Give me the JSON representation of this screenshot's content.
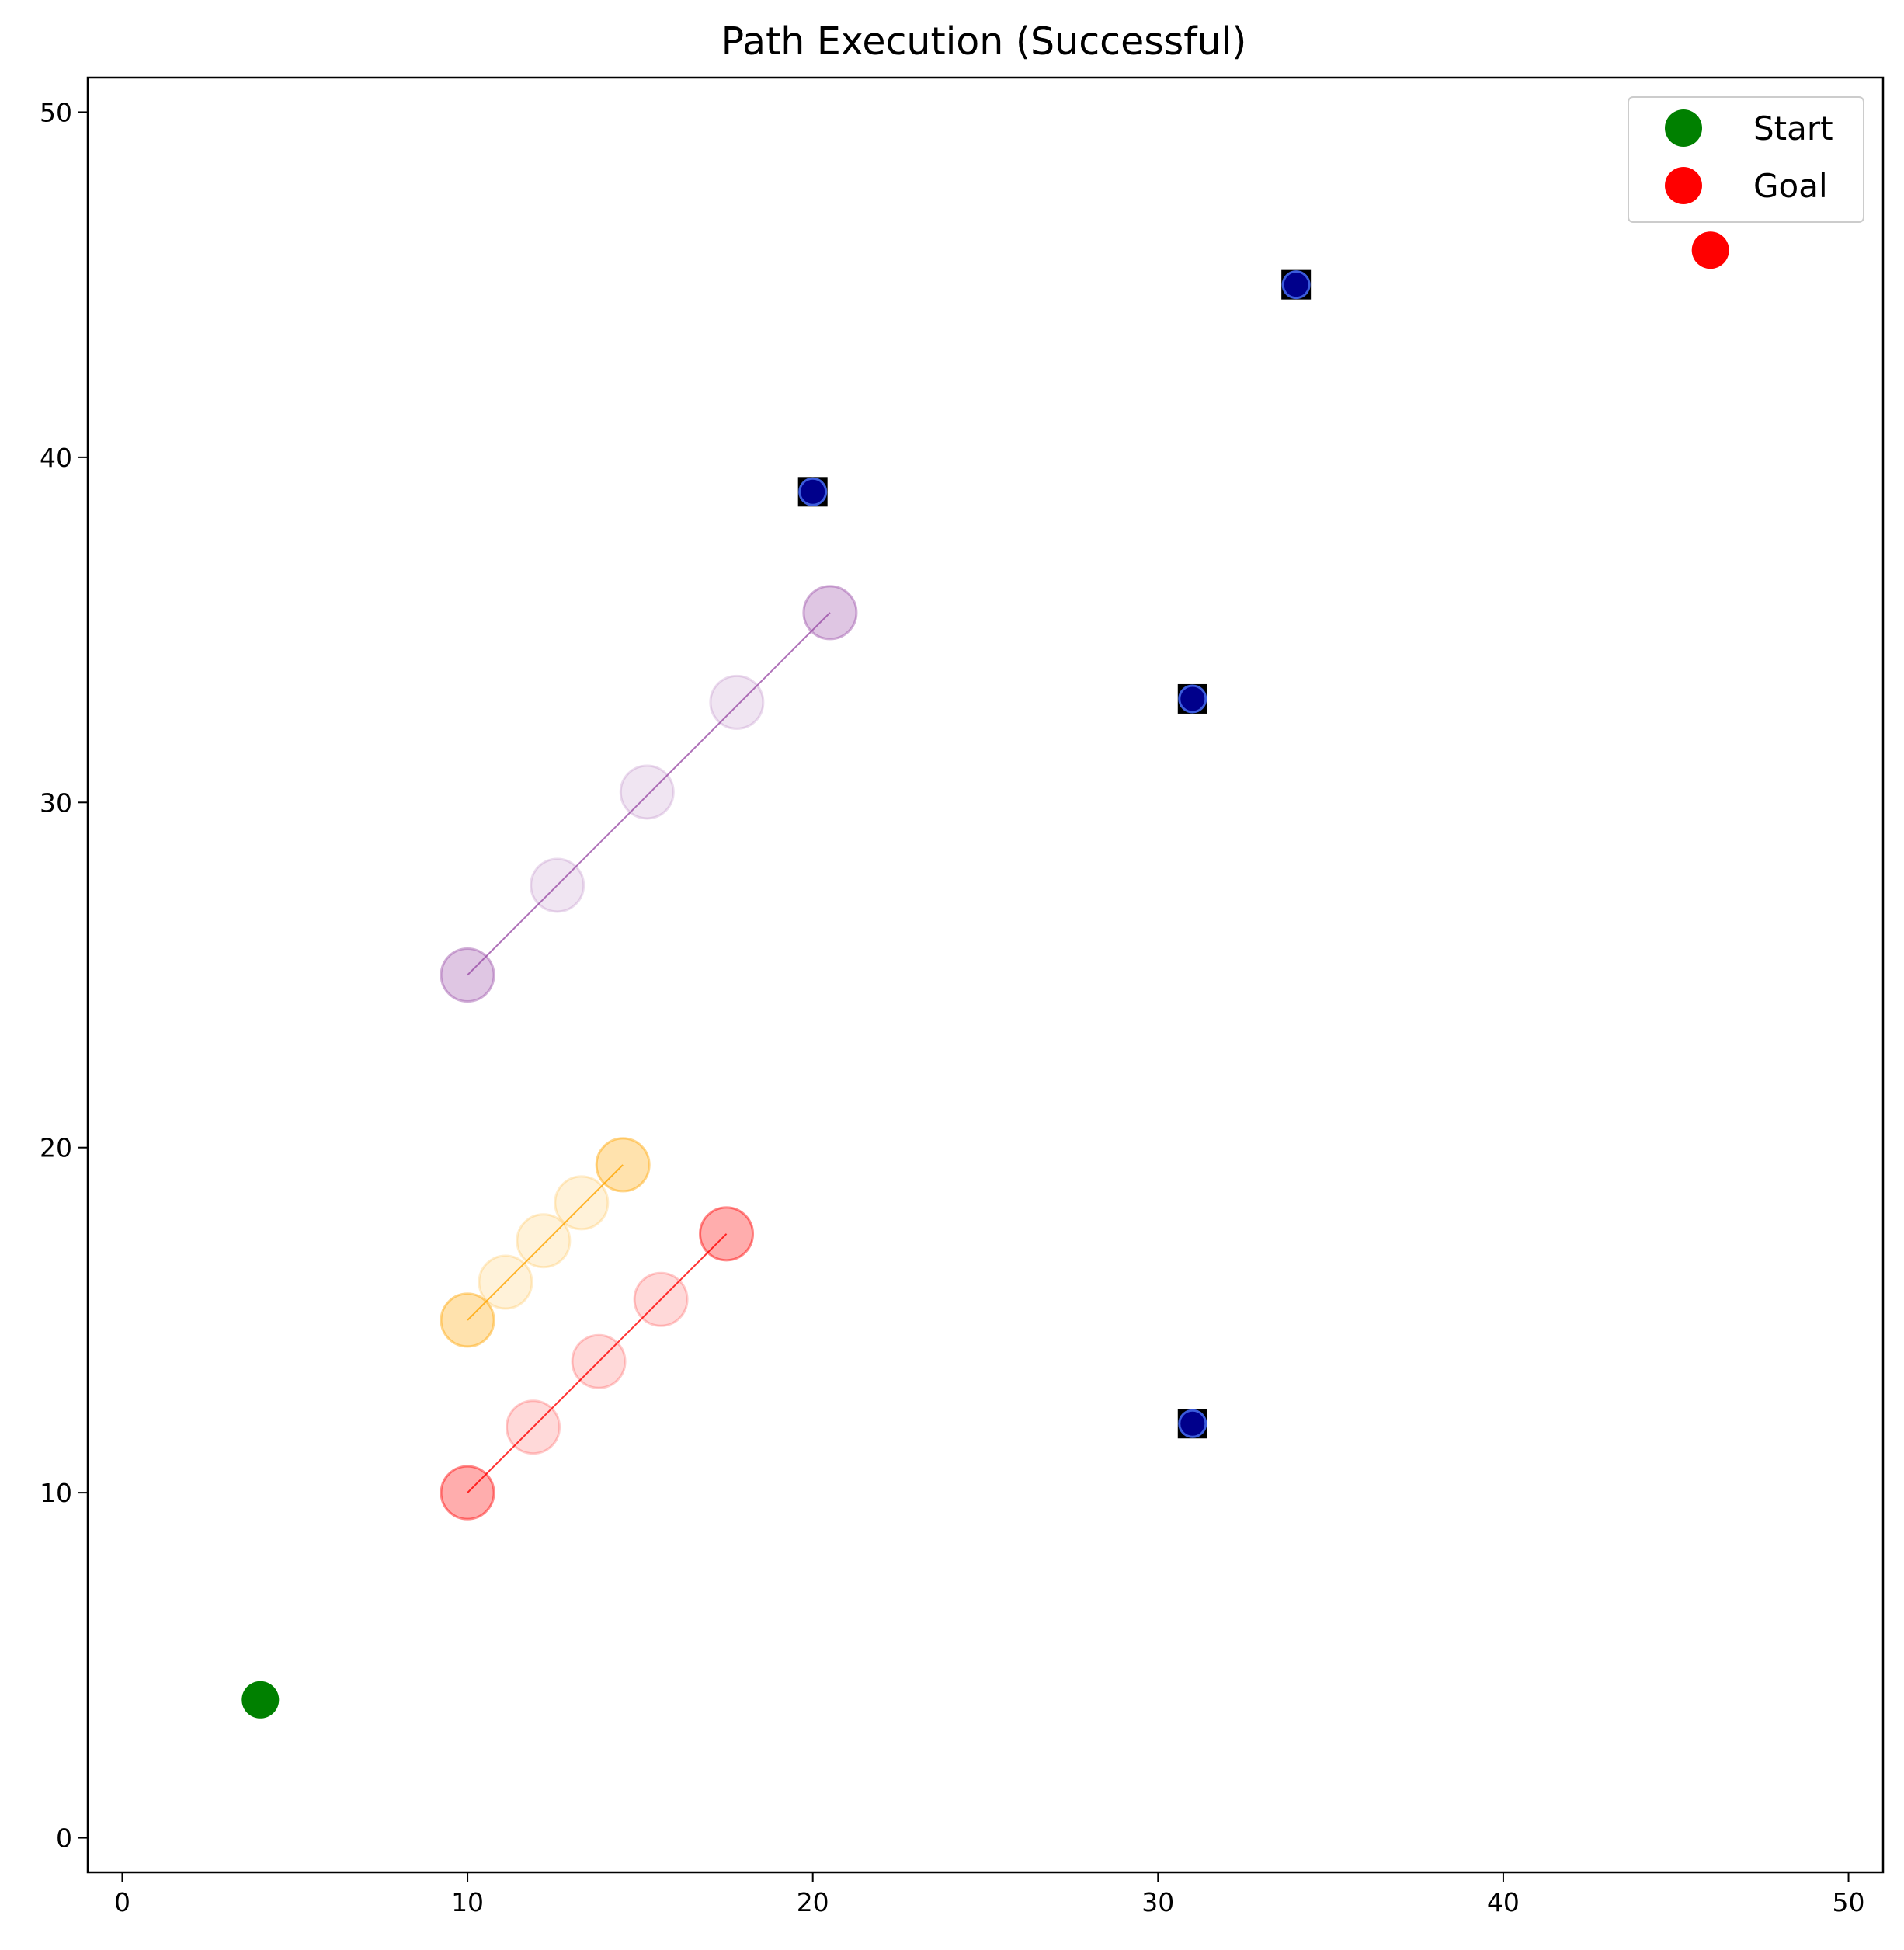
{
  "chart_data": {
    "type": "scatter",
    "title": "Path Execution (Successful)",
    "xlabel": "",
    "ylabel": "",
    "xlim": [
      -1,
      51
    ],
    "ylim": [
      -1,
      51
    ],
    "xticks": [
      0,
      10,
      20,
      30,
      40,
      50
    ],
    "yticks": [
      0,
      10,
      20,
      30,
      40,
      50
    ],
    "grid": false,
    "legend_position": "top-right",
    "legend": [
      {
        "label": "Start",
        "color": "#008000"
      },
      {
        "label": "Goal",
        "color": "#ff0000"
      }
    ],
    "start": {
      "x": 4,
      "y": 4
    },
    "goal": {
      "x": 46,
      "y": 46
    },
    "static_obstacles": [
      {
        "x": 34,
        "y": 45
      },
      {
        "x": 20,
        "y": 39
      },
      {
        "x": 31,
        "y": 33
      },
      {
        "x": 31,
        "y": 12
      }
    ],
    "moving_obstacles": [
      {
        "color": "#9b4fa8",
        "points": [
          [
            10,
            25
          ],
          [
            12.6,
            27.6
          ],
          [
            15.2,
            30.3
          ],
          [
            17.8,
            32.9
          ],
          [
            20.5,
            35.5
          ]
        ]
      },
      {
        "color": "#ffa500",
        "points": [
          [
            10,
            15
          ],
          [
            11.1,
            16.1
          ],
          [
            12.2,
            17.3
          ],
          [
            13.3,
            18.4
          ],
          [
            14.5,
            19.5
          ]
        ]
      },
      {
        "color": "#ff0000",
        "points": [
          [
            10,
            10
          ],
          [
            11.9,
            11.9
          ],
          [
            13.8,
            13.8
          ],
          [
            15.6,
            15.6
          ],
          [
            17.5,
            17.5
          ]
        ]
      }
    ],
    "colors": {
      "obstacle_fill": "#00008b",
      "obstacle_square": "#000000",
      "obstacle_ring": "#3b5bdb"
    }
  }
}
